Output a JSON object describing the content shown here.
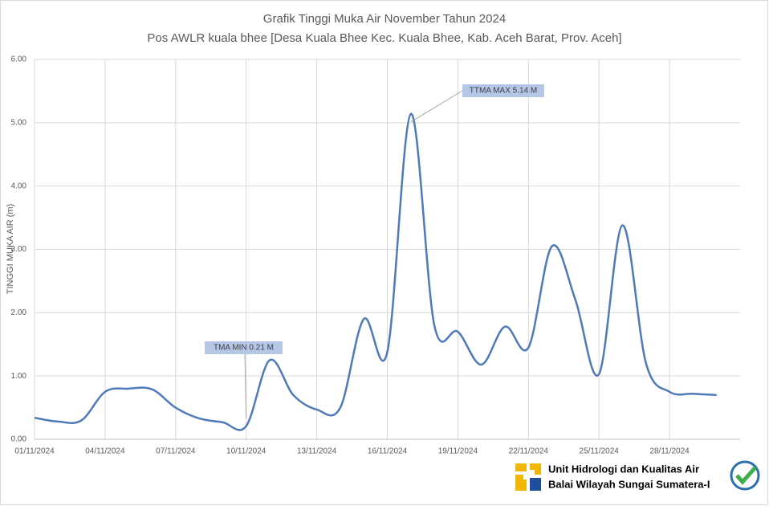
{
  "chart_data": {
    "type": "line",
    "title": "Grafik Tinggi Muka Air November Tahun 2024",
    "subtitle": "Pos AWLR kuala bhee [Desa Kuala Bhee Kec. Kuala Bhee, Kab. Aceh Barat, Prov. Aceh]",
    "y_label": "TINGGI MUKA AIR (m)",
    "categories": [
      "01/11/2024",
      null,
      null,
      "04/11/2024",
      null,
      null,
      "07/11/2024",
      null,
      null,
      "10/11/2024",
      null,
      null,
      "13/11/2024",
      null,
      null,
      "16/11/2024",
      null,
      null,
      "19/11/2024",
      null,
      null,
      "22/11/2024",
      null,
      null,
      "25/11/2024",
      null,
      null,
      "28/11/2024",
      null,
      null
    ],
    "series": [
      {
        "name": "TMA",
        "color": "#4f7ab8",
        "values": [
          0.34,
          0.28,
          0.3,
          0.75,
          0.8,
          0.79,
          0.5,
          0.33,
          0.27,
          0.21,
          1.25,
          0.7,
          0.47,
          0.5,
          1.9,
          1.38,
          5.14,
          1.8,
          1.7,
          1.18,
          1.78,
          1.45,
          3.05,
          2.2,
          1.03,
          3.38,
          1.2,
          0.75,
          0.72,
          0.7
        ]
      }
    ],
    "ylim": [
      0,
      6
    ],
    "yticks": [
      {
        "value": 0,
        "label": "0.00"
      },
      {
        "value": 1,
        "label": "1.00"
      },
      {
        "value": 2,
        "label": "2.00"
      },
      {
        "value": 3,
        "label": "3.00"
      },
      {
        "value": 4,
        "label": "4.00"
      },
      {
        "value": 5,
        "label": "5.00"
      },
      {
        "value": 6,
        "label": "6.00"
      }
    ],
    "grid": true,
    "annotations": [
      {
        "text": "TMA MIN  0.21  M",
        "index": 9
      },
      {
        "text": "TTMA MAX  5.14  M",
        "index": 16
      }
    ]
  },
  "footer": {
    "line1": "Unit Hidrologi dan Kualitas Air",
    "line2": "Balai Wilayah Sungai Sumatera-I"
  }
}
